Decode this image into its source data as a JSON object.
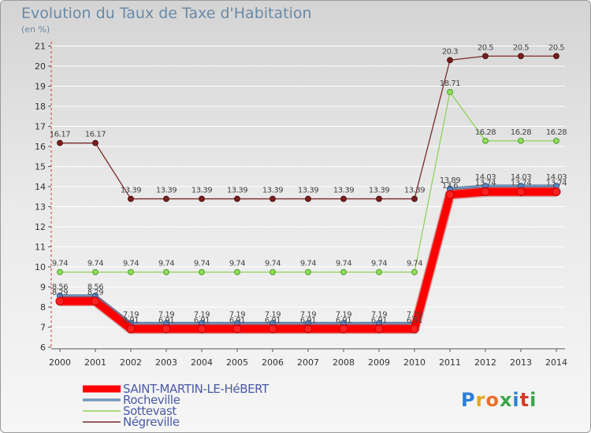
{
  "header": {
    "title": "Evolution du Taux de Taxe d'Habitation",
    "unit": "(en %)"
  },
  "brand": {
    "letters": [
      "P",
      "r",
      "o",
      "x",
      "i",
      "t",
      "i"
    ],
    "colors": [
      "#2a7fd4",
      "#e8a520",
      "#e8702a",
      "#3aa64a",
      "#2a7fd4",
      "#d63a2a",
      "#3aa64a"
    ]
  },
  "chart_data": {
    "type": "line",
    "title": "Evolution du Taux de Taxe d'Habitation",
    "ylabel": "(en %)",
    "xlabel": "",
    "ylim": [
      6,
      21
    ],
    "yticks": [
      6,
      7,
      8,
      9,
      10,
      11,
      12,
      13,
      14,
      15,
      16,
      17,
      18,
      19,
      20,
      21
    ],
    "categories": [
      "2000",
      "2001",
      "2002",
      "2003",
      "2004",
      "2005",
      "2006",
      "2007",
      "2008",
      "2009",
      "2010",
      "2011",
      "2012",
      "2013",
      "2014"
    ],
    "series": [
      {
        "name": "SAINT-MARTIN-LE-HéBERT",
        "color": "#ff0000",
        "values": [
          8.29,
          8.29,
          6.91,
          6.91,
          6.91,
          6.91,
          6.91,
          6.91,
          6.91,
          6.91,
          6.91,
          13.6,
          13.74,
          13.74,
          13.74
        ],
        "labels": [
          "8.29",
          "8.29",
          "6.91",
          "6.91",
          "6.91",
          "6.91",
          "6.91",
          "6.91",
          "6.91",
          "6.91",
          "6.91",
          "13.6",
          "13.74",
          "13.74",
          "13.74"
        ]
      },
      {
        "name": "Rocheville",
        "color": "#79a7d6",
        "values": [
          8.56,
          8.56,
          7.19,
          7.19,
          7.19,
          7.19,
          7.19,
          7.19,
          7.19,
          7.19,
          7.19,
          13.89,
          14.03,
          14.03,
          14.03
        ],
        "labels": [
          "8.56",
          "8.56",
          "7.19",
          "7.19",
          "7.19",
          "7.19",
          "7.19",
          "7.19",
          "7.19",
          "7.19",
          "7.19",
          "13.89",
          "14.03",
          "14.03",
          "14.03"
        ]
      },
      {
        "name": "Sottevast",
        "color": "#8fd45a",
        "values": [
          9.74,
          9.74,
          9.74,
          9.74,
          9.74,
          9.74,
          9.74,
          9.74,
          9.74,
          9.74,
          9.74,
          18.71,
          16.28,
          16.28,
          16.28
        ],
        "labels": [
          "9.74",
          "9.74",
          "9.74",
          "9.74",
          "9.74",
          "9.74",
          "9.74",
          "9.74",
          "9.74",
          "9.74",
          "9.74",
          "18.71",
          "16.28",
          "16.28",
          "16.28"
        ]
      },
      {
        "name": "Négreville",
        "color": "#7a2a2a",
        "values": [
          16.17,
          16.17,
          13.39,
          13.39,
          13.39,
          13.39,
          13.39,
          13.39,
          13.39,
          13.39,
          13.39,
          20.3,
          20.5,
          20.5,
          20.5
        ],
        "labels": [
          "16.17",
          "16.17",
          "13.39",
          "13.39",
          "13.39",
          "13.39",
          "13.39",
          "13.39",
          "13.39",
          "13.39",
          "13.39",
          "20.3",
          "20.5",
          "20.5",
          "20.5"
        ]
      }
    ]
  }
}
